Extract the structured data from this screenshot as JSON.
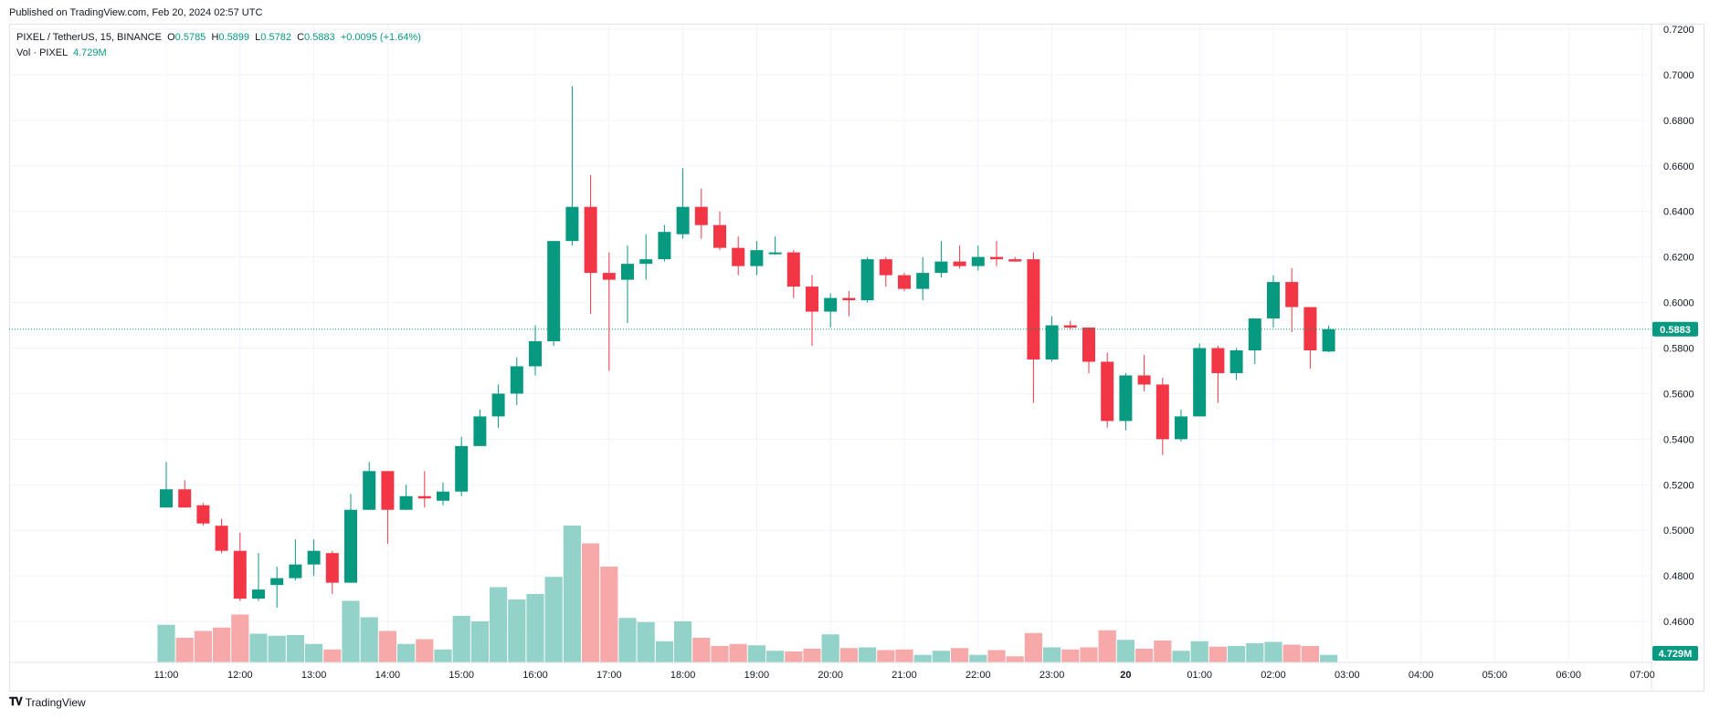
{
  "published": "Published on TradingView.com, Feb 20, 2024 02:57 UTC",
  "symbol_line": {
    "symbol": "PIXEL / TetherUS, 15, BINANCE",
    "o_label": "O",
    "o": "0.5785",
    "h_label": "H",
    "h": "0.5899",
    "l_label": "L",
    "l": "0.5782",
    "c_label": "C",
    "c": "0.5883",
    "change": "+0.0095 (+1.64%)"
  },
  "volume_line": {
    "label": "Vol · PIXEL",
    "value": "4.729M"
  },
  "colors": {
    "up": "#089981",
    "down": "#f23645",
    "up_vol": "#93d2c9",
    "down_vol": "#f7a9a9",
    "grid": "#f0f3fa"
  },
  "price_badge": "0.5883",
  "volume_badge": "4.729M",
  "brand": "TradingView",
  "chart_data": {
    "type": "candlestick",
    "title": "PIXEL / TetherUS, 15, BINANCE",
    "y_ticks": [
      "0.7200",
      "0.7000",
      "0.6800",
      "0.6600",
      "0.6400",
      "0.6200",
      "0.6000",
      "0.5800",
      "0.5600",
      "0.5400",
      "0.5200",
      "0.5000",
      "0.4800",
      "0.4600"
    ],
    "ylim": [
      0.442,
      0.722
    ],
    "x_ticks": [
      "11:00",
      "12:00",
      "13:00",
      "14:00",
      "15:00",
      "16:00",
      "17:00",
      "18:00",
      "19:00",
      "20:00",
      "21:00",
      "22:00",
      "23:00",
      "20",
      "01:00",
      "02:00",
      "03:00",
      "04:00",
      "05:00",
      "06:00",
      "07:00"
    ],
    "last_price": 0.5883,
    "candles": [
      {
        "o": 0.51,
        "h": 0.53,
        "l": 0.51,
        "c": 0.518
      },
      {
        "o": 0.518,
        "h": 0.522,
        "l": 0.51,
        "c": 0.51
      },
      {
        "o": 0.511,
        "h": 0.512,
        "l": 0.502,
        "c": 0.503
      },
      {
        "o": 0.502,
        "h": 0.505,
        "l": 0.49,
        "c": 0.491
      },
      {
        "o": 0.491,
        "h": 0.499,
        "l": 0.469,
        "c": 0.47
      },
      {
        "o": 0.47,
        "h": 0.49,
        "l": 0.469,
        "c": 0.474
      },
      {
        "o": 0.476,
        "h": 0.484,
        "l": 0.466,
        "c": 0.479
      },
      {
        "o": 0.479,
        "h": 0.496,
        "l": 0.478,
        "c": 0.485
      },
      {
        "o": 0.485,
        "h": 0.496,
        "l": 0.48,
        "c": 0.491
      },
      {
        "o": 0.49,
        "h": 0.491,
        "l": 0.472,
        "c": 0.477
      },
      {
        "o": 0.477,
        "h": 0.516,
        "l": 0.477,
        "c": 0.509
      },
      {
        "o": 0.509,
        "h": 0.53,
        "l": 0.509,
        "c": 0.526
      },
      {
        "o": 0.526,
        "h": 0.526,
        "l": 0.494,
        "c": 0.509
      },
      {
        "o": 0.509,
        "h": 0.52,
        "l": 0.509,
        "c": 0.515
      },
      {
        "o": 0.515,
        "h": 0.526,
        "l": 0.51,
        "c": 0.514
      },
      {
        "o": 0.513,
        "h": 0.521,
        "l": 0.511,
        "c": 0.517
      },
      {
        "o": 0.517,
        "h": 0.541,
        "l": 0.515,
        "c": 0.537
      },
      {
        "o": 0.537,
        "h": 0.553,
        "l": 0.537,
        "c": 0.55
      },
      {
        "o": 0.55,
        "h": 0.564,
        "l": 0.545,
        "c": 0.56
      },
      {
        "o": 0.56,
        "h": 0.576,
        "l": 0.555,
        "c": 0.572
      },
      {
        "o": 0.572,
        "h": 0.59,
        "l": 0.568,
        "c": 0.583
      },
      {
        "o": 0.583,
        "h": 0.627,
        "l": 0.581,
        "c": 0.627
      },
      {
        "o": 0.627,
        "h": 0.695,
        "l": 0.625,
        "c": 0.642
      },
      {
        "o": 0.642,
        "h": 0.656,
        "l": 0.595,
        "c": 0.613
      },
      {
        "o": 0.613,
        "h": 0.622,
        "l": 0.57,
        "c": 0.61
      },
      {
        "o": 0.61,
        "h": 0.625,
        "l": 0.591,
        "c": 0.617
      },
      {
        "o": 0.617,
        "h": 0.63,
        "l": 0.61,
        "c": 0.619
      },
      {
        "o": 0.619,
        "h": 0.634,
        "l": 0.618,
        "c": 0.631
      },
      {
        "o": 0.63,
        "h": 0.659,
        "l": 0.628,
        "c": 0.642
      },
      {
        "o": 0.642,
        "h": 0.65,
        "l": 0.628,
        "c": 0.634
      },
      {
        "o": 0.634,
        "h": 0.64,
        "l": 0.623,
        "c": 0.624
      },
      {
        "o": 0.624,
        "h": 0.629,
        "l": 0.612,
        "c": 0.616
      },
      {
        "o": 0.616,
        "h": 0.627,
        "l": 0.612,
        "c": 0.623
      },
      {
        "o": 0.622,
        "h": 0.629,
        "l": 0.621,
        "c": 0.622
      },
      {
        "o": 0.622,
        "h": 0.623,
        "l": 0.602,
        "c": 0.607
      },
      {
        "o": 0.607,
        "h": 0.612,
        "l": 0.581,
        "c": 0.596
      },
      {
        "o": 0.596,
        "h": 0.604,
        "l": 0.589,
        "c": 0.602
      },
      {
        "o": 0.602,
        "h": 0.605,
        "l": 0.594,
        "c": 0.601
      },
      {
        "o": 0.601,
        "h": 0.62,
        "l": 0.6,
        "c": 0.619
      },
      {
        "o": 0.619,
        "h": 0.62,
        "l": 0.607,
        "c": 0.612
      },
      {
        "o": 0.612,
        "h": 0.613,
        "l": 0.605,
        "c": 0.606
      },
      {
        "o": 0.606,
        "h": 0.62,
        "l": 0.601,
        "c": 0.613
      },
      {
        "o": 0.613,
        "h": 0.627,
        "l": 0.611,
        "c": 0.618
      },
      {
        "o": 0.618,
        "h": 0.625,
        "l": 0.615,
        "c": 0.616
      },
      {
        "o": 0.616,
        "h": 0.625,
        "l": 0.614,
        "c": 0.62
      },
      {
        "o": 0.62,
        "h": 0.627,
        "l": 0.616,
        "c": 0.619
      },
      {
        "o": 0.619,
        "h": 0.62,
        "l": 0.618,
        "c": 0.618
      },
      {
        "o": 0.619,
        "h": 0.622,
        "l": 0.556,
        "c": 0.575
      },
      {
        "o": 0.575,
        "h": 0.594,
        "l": 0.574,
        "c": 0.59
      },
      {
        "o": 0.59,
        "h": 0.592,
        "l": 0.588,
        "c": 0.589
      },
      {
        "o": 0.589,
        "h": 0.589,
        "l": 0.569,
        "c": 0.574
      },
      {
        "o": 0.574,
        "h": 0.578,
        "l": 0.545,
        "c": 0.548
      },
      {
        "o": 0.548,
        "h": 0.569,
        "l": 0.544,
        "c": 0.568
      },
      {
        "o": 0.568,
        "h": 0.577,
        "l": 0.561,
        "c": 0.564
      },
      {
        "o": 0.564,
        "h": 0.567,
        "l": 0.533,
        "c": 0.54
      },
      {
        "o": 0.54,
        "h": 0.553,
        "l": 0.539,
        "c": 0.55
      },
      {
        "o": 0.55,
        "h": 0.582,
        "l": 0.55,
        "c": 0.58
      },
      {
        "o": 0.58,
        "h": 0.581,
        "l": 0.556,
        "c": 0.569
      },
      {
        "o": 0.569,
        "h": 0.58,
        "l": 0.566,
        "c": 0.579
      },
      {
        "o": 0.579,
        "h": 0.593,
        "l": 0.573,
        "c": 0.593
      },
      {
        "o": 0.593,
        "h": 0.612,
        "l": 0.589,
        "c": 0.609
      },
      {
        "o": 0.609,
        "h": 0.615,
        "l": 0.587,
        "c": 0.598
      },
      {
        "o": 0.598,
        "h": 0.598,
        "l": 0.571,
        "c": 0.579
      },
      {
        "o": 0.5785,
        "h": 0.5899,
        "l": 0.5782,
        "c": 0.5883
      }
    ],
    "volumes": [
      0.55,
      0.36,
      0.46,
      0.51,
      0.7,
      0.42,
      0.39,
      0.4,
      0.27,
      0.19,
      0.9,
      0.66,
      0.46,
      0.27,
      0.34,
      0.19,
      0.68,
      0.6,
      1.1,
      0.92,
      1.0,
      1.25,
      2.0,
      1.74,
      1.4,
      0.65,
      0.59,
      0.31,
      0.6,
      0.36,
      0.24,
      0.27,
      0.25,
      0.17,
      0.16,
      0.2,
      0.41,
      0.21,
      0.22,
      0.18,
      0.19,
      0.11,
      0.17,
      0.21,
      0.11,
      0.18,
      0.09,
      0.43,
      0.22,
      0.19,
      0.22,
      0.47,
      0.33,
      0.2,
      0.32,
      0.17,
      0.31,
      0.23,
      0.24,
      0.28,
      0.3,
      0.26,
      0.24,
      0.11
    ]
  }
}
